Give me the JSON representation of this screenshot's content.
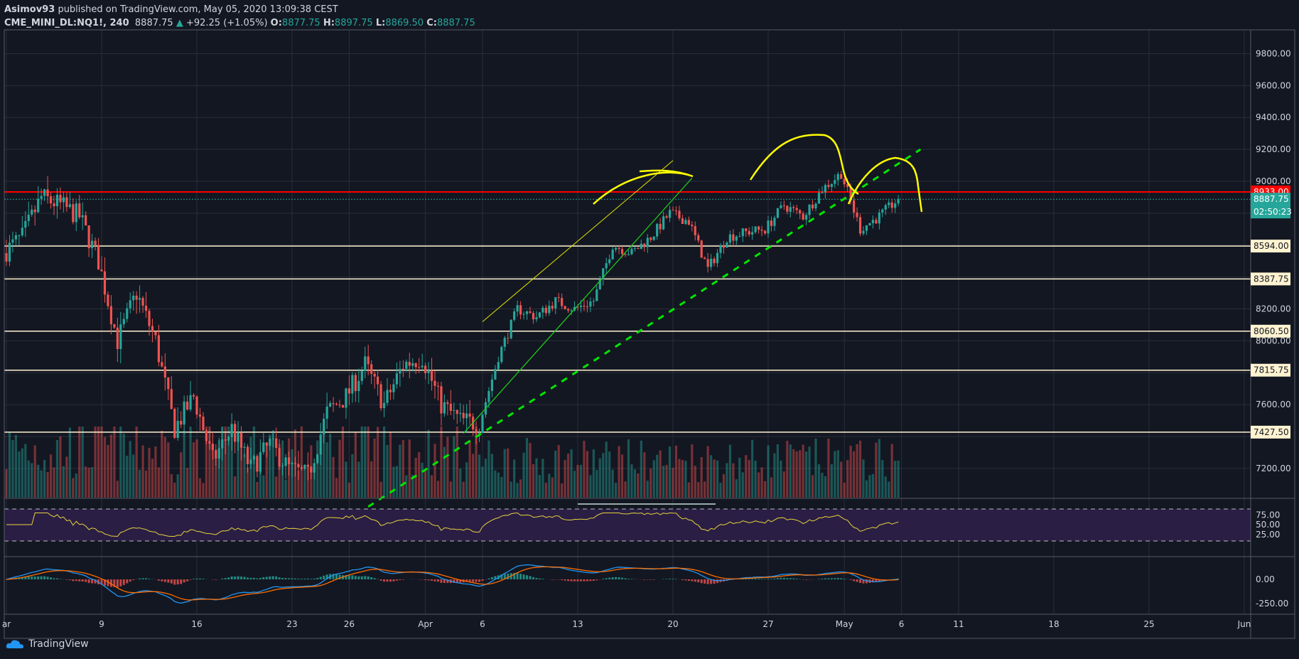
{
  "header": {
    "publisher": "Asimov93",
    "published_text": "published on TradingView.com, May 05, 2020 13:09:38 CEST",
    "symbol": "CME_MINI_DL:NQ1!, 240",
    "last": "8887.75",
    "change": "+92.25 (+1.05%)",
    "o_label": "O:",
    "o": "8877.75",
    "h_label": "H:",
    "h": "8897.75",
    "l_label": "L:",
    "l": "8869.50",
    "c_label": "C:",
    "c": "8887.75"
  },
  "logo": {
    "text": "TradingView"
  },
  "colors": {
    "up": "#26a69a",
    "down": "#ef5350",
    "resistance": "#ff0000",
    "support": "#fff3d0",
    "annotation_yellow": "#ffff00",
    "trend_green": "#00e600",
    "rsi_band": "#2a1e45",
    "background": "#131722"
  },
  "chart_data": {
    "type": "candlestick",
    "symbol": "CME_MINI_DL:NQ1!",
    "interval": "240",
    "ylim": [
      7000,
      9900
    ],
    "price_ticks": [
      "9800.00",
      "9600.00",
      "9400.00",
      "9200.00",
      "9000.00",
      "8200.00",
      "8000.00",
      "7600.00",
      "7200.00"
    ],
    "x_tick_labels": [
      {
        "date": "2020-03-02",
        "label": "ar"
      },
      {
        "date": "2020-03-09",
        "label": "9"
      },
      {
        "date": "2020-03-16",
        "label": "16"
      },
      {
        "date": "2020-03-23",
        "label": "23"
      },
      {
        "date": "2020-03-26",
        "label": "26"
      },
      {
        "date": "2020-04-01",
        "label": "Apr"
      },
      {
        "date": "2020-04-06",
        "label": "6"
      },
      {
        "date": "2020-04-13",
        "label": "13"
      },
      {
        "date": "2020-04-20",
        "label": "20"
      },
      {
        "date": "2020-04-27",
        "label": "27"
      },
      {
        "date": "2020-05-01",
        "label": "May"
      },
      {
        "date": "2020-05-06",
        "label": "6"
      },
      {
        "date": "2020-05-11",
        "label": "11"
      },
      {
        "date": "2020-05-18",
        "label": "18"
      },
      {
        "date": "2020-05-25",
        "label": "25"
      },
      {
        "date": "2020-06-01",
        "label": "Jun"
      }
    ],
    "approx_daily_close": [
      [
        "2020-03-02",
        8650
      ],
      [
        "2020-03-03",
        8900
      ],
      [
        "2020-03-04",
        8850
      ],
      [
        "2020-03-05",
        8780
      ],
      [
        "2020-03-06",
        8500
      ],
      [
        "2020-03-09",
        8000
      ],
      [
        "2020-03-10",
        8300
      ],
      [
        "2020-03-11",
        8000
      ],
      [
        "2020-03-12",
        7450
      ],
      [
        "2020-03-13",
        7650
      ],
      [
        "2020-03-16",
        7250
      ],
      [
        "2020-03-17",
        7450
      ],
      [
        "2020-03-18",
        7200
      ],
      [
        "2020-03-19",
        7350
      ],
      [
        "2020-03-20",
        7200
      ],
      [
        "2020-03-23",
        7150
      ],
      [
        "2020-03-24",
        7550
      ],
      [
        "2020-03-25",
        7650
      ],
      [
        "2020-03-26",
        7850
      ],
      [
        "2020-03-27",
        7600
      ],
      [
        "2020-03-30",
        7850
      ],
      [
        "2020-03-31",
        7900
      ],
      [
        "2020-04-01",
        7600
      ],
      [
        "2020-04-02",
        7500
      ],
      [
        "2020-04-03",
        7480
      ],
      [
        "2020-04-06",
        7900
      ],
      [
        "2020-04-07",
        8200
      ],
      [
        "2020-04-08",
        8150
      ],
      [
        "2020-04-09",
        8250
      ],
      [
        "2020-04-10",
        8200
      ],
      [
        "2020-04-13",
        8250
      ],
      [
        "2020-04-14",
        8600
      ],
      [
        "2020-04-15",
        8550
      ],
      [
        "2020-04-16",
        8650
      ],
      [
        "2020-04-17",
        8800
      ],
      [
        "2020-04-20",
        8750
      ],
      [
        "2020-04-21",
        8450
      ],
      [
        "2020-04-22",
        8650
      ],
      [
        "2020-04-23",
        8680
      ],
      [
        "2020-04-24",
        8700
      ],
      [
        "2020-04-27",
        8850
      ],
      [
        "2020-04-28",
        8780
      ],
      [
        "2020-04-29",
        8950
      ],
      [
        "2020-04-30",
        9050
      ],
      [
        "2020-05-01",
        8700
      ],
      [
        "2020-05-04",
        8780
      ],
      [
        "2020-05-05",
        8887.75
      ]
    ],
    "horizontal_levels": [
      {
        "price": 8933.0,
        "label": "8933.00",
        "kind": "resistance"
      },
      {
        "price": 8594.0,
        "label": "8594.00",
        "kind": "support"
      },
      {
        "price": 8387.75,
        "label": "8387.75",
        "kind": "support"
      },
      {
        "price": 8060.5,
        "label": "8060.50",
        "kind": "support"
      },
      {
        "price": 7815.75,
        "label": "7815.75",
        "kind": "support"
      },
      {
        "price": 7427.5,
        "label": "7427.50",
        "kind": "support"
      }
    ],
    "last_price": {
      "price": 8887.75,
      "label": "8887.75",
      "countdown": "02:50:23"
    },
    "trendlines": [
      {
        "kind": "yellow-channel",
        "from": [
          "2020-04-06",
          8120
        ],
        "to": [
          "2020-04-20",
          9130
        ]
      },
      {
        "kind": "green-solid",
        "from": [
          "2020-04-03",
          7420
        ],
        "to": [
          "2020-04-21",
          9020
        ]
      },
      {
        "kind": "green-dashed",
        "from": [
          "2020-03-27",
          6960
        ],
        "to": [
          "2020-05-07",
          9200
        ]
      }
    ],
    "rsi": {
      "ticks": [
        "75.00",
        "50.00",
        "25.00"
      ],
      "upper": 70,
      "lower": 30
    },
    "macd": {
      "ticks": [
        "0.00",
        "-250.00"
      ]
    }
  }
}
